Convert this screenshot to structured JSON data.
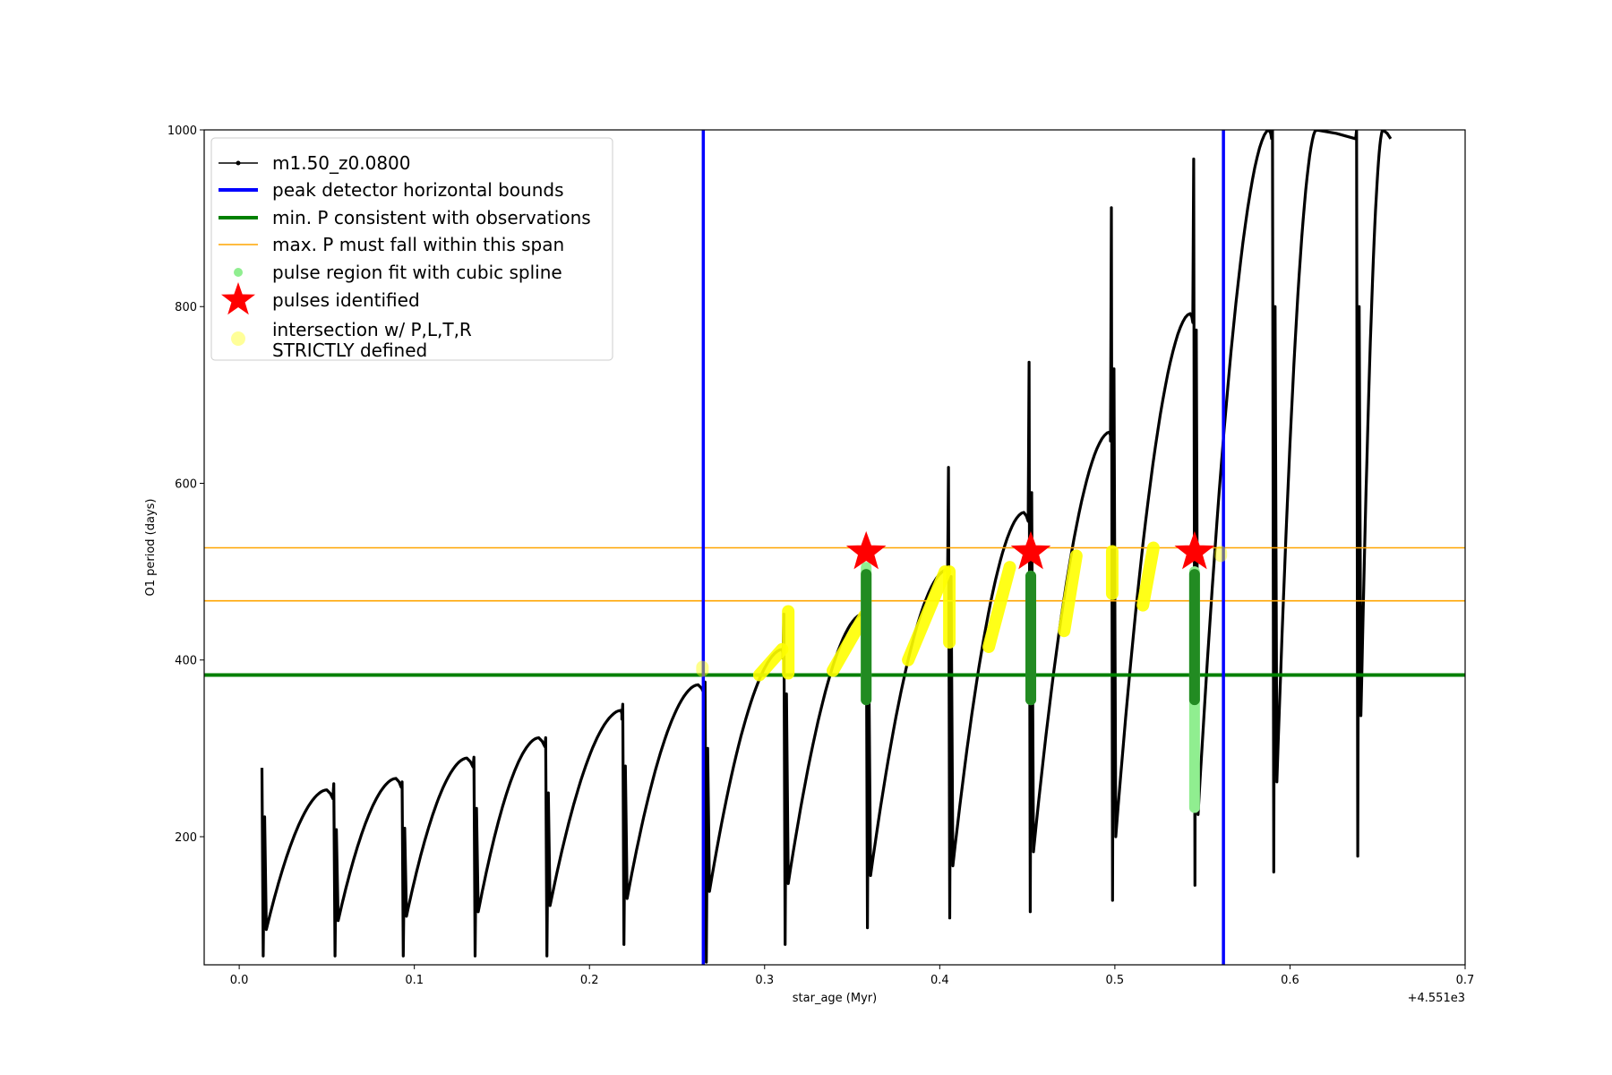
{
  "chart_data": {
    "type": "line",
    "title": "",
    "xlabel": "star_age (Myr)",
    "ylabel": "O1 period (days)",
    "x_offset_label": "+4.551e3",
    "xlim": [
      -0.02,
      0.7
    ],
    "ylim": [
      55,
      1000
    ],
    "xticks": [
      {
        "value": 0.0,
        "label": "0.0"
      },
      {
        "value": 0.1,
        "label": "0.1"
      },
      {
        "value": 0.2,
        "label": "0.2"
      },
      {
        "value": 0.3,
        "label": "0.3"
      },
      {
        "value": 0.4,
        "label": "0.4"
      },
      {
        "value": 0.5,
        "label": "0.5"
      },
      {
        "value": 0.6,
        "label": "0.6"
      },
      {
        "value": 0.7,
        "label": "0.7"
      }
    ],
    "yticks": [
      {
        "value": 200,
        "label": "200"
      },
      {
        "value": 400,
        "label": "400"
      },
      {
        "value": 600,
        "label": "600"
      },
      {
        "value": 800,
        "label": "800"
      },
      {
        "value": 1000,
        "label": "1000"
      }
    ],
    "grid": false,
    "legend_position": "upper-left",
    "legend": [
      {
        "label": "m1.50_z0.0800",
        "kind": "line-marker",
        "color": "#000000"
      },
      {
        "label": "peak detector horizontal bounds",
        "kind": "thick-line",
        "color": "#0000ff"
      },
      {
        "label": "min. P consistent with observations",
        "kind": "thick-line",
        "color": "#008000"
      },
      {
        "label": "max. P must fall within this span",
        "kind": "thin-line",
        "color": "#ffa500"
      },
      {
        "label": "pulse region fit with cubic spline",
        "kind": "dot",
        "color": "#90ee90"
      },
      {
        "label": "pulses identified",
        "kind": "star",
        "color": "#ff0000"
      },
      {
        "label": "intersection w/ P,L,T,R\nSTRICTLY defined",
        "kind": "big-dot",
        "color": "#ffff99"
      }
    ],
    "vertical_lines": [
      {
        "name": "peak detector horizontal bounds",
        "x": 0.265,
        "color": "#0000ff"
      },
      {
        "name": "peak detector horizontal bounds",
        "x": 0.562,
        "color": "#0000ff"
      }
    ],
    "horizontal_lines": [
      {
        "name": "min. P consistent with observations",
        "y": 383,
        "color": "#008000"
      },
      {
        "name": "max. P must fall within this span",
        "y": 467,
        "color": "#ffa500"
      },
      {
        "name": "max. P must fall within this span",
        "y": 527,
        "color": "#ffa500"
      }
    ],
    "series": [
      {
        "name": "m1.50_z0.0800",
        "color": "#000000",
        "thermal_pulses": [
          {
            "start": 0.013,
            "spike_top": 278,
            "spike_bottom": 65,
            "trough": 95,
            "peak_x": 0.05,
            "peak": 253
          },
          {
            "start": 0.054,
            "spike_top": 260,
            "spike_bottom": 65,
            "trough": 105,
            "peak_x": 0.0895,
            "peak": 266
          },
          {
            "start": 0.093,
            "spike_top": 262,
            "spike_bottom": 65,
            "trough": 110,
            "peak_x": 0.13,
            "peak": 289
          },
          {
            "start": 0.134,
            "spike_top": 290,
            "spike_bottom": 65,
            "trough": 115,
            "peak_x": 0.171,
            "peak": 312
          },
          {
            "start": 0.175,
            "spike_top": 312,
            "spike_bottom": 65,
            "trough": 122,
            "peak_x": 0.218,
            "peak": 343
          },
          {
            "start": 0.219,
            "spike_top": 350,
            "spike_bottom": 78,
            "trough": 130,
            "peak_x": 0.262,
            "peak": 372
          },
          {
            "start": 0.266,
            "spike_top": 375,
            "spike_bottom": 58,
            "trough": 138,
            "peak_x": 0.31,
            "peak": 412
          },
          {
            "start": 0.311,
            "spike_top": 452,
            "spike_bottom": 78,
            "trough": 147,
            "peak_x": 0.356,
            "peak": 452
          },
          {
            "start": 0.358,
            "spike_top": 505,
            "spike_bottom": 97,
            "trough": 156,
            "peak_x": 0.404,
            "peak": 502
          },
          {
            "start": 0.405,
            "spike_top": 618,
            "spike_bottom": 108,
            "trough": 167,
            "peak_x": 0.448,
            "peak": 567
          },
          {
            "start": 0.451,
            "spike_top": 737,
            "spike_bottom": 115,
            "trough": 183,
            "peak_x": 0.497,
            "peak": 658
          },
          {
            "start": 0.498,
            "spike_top": 912,
            "spike_bottom": 128,
            "trough": 200,
            "peak_x": 0.543,
            "peak": 792
          },
          {
            "start": 0.545,
            "spike_top": 967,
            "spike_bottom": 145,
            "trough": 225,
            "peak_x": 0.588,
            "peak": 1000
          },
          {
            "start": 0.59,
            "spike_top": 1000,
            "spike_bottom": 160,
            "trough": 262,
            "peak_x": 0.615,
            "peak": 1000
          },
          {
            "start": 0.638,
            "spike_top": 1000,
            "spike_bottom": 178,
            "trough": 337,
            "peak_x": 0.653,
            "peak": 1000
          }
        ]
      },
      {
        "name": "pulse region fit with cubic spline",
        "color": "#90ee90",
        "segments": [
          {
            "x": 0.358,
            "y_from": 355,
            "y_to": 505
          },
          {
            "x": 0.452,
            "y_from": 355,
            "y_to": 495
          },
          {
            "x": 0.5455,
            "y_from": 233,
            "y_to": 500
          }
        ]
      },
      {
        "name": "pulses identified",
        "color": "#ff0000",
        "points": [
          {
            "x": 0.358,
            "y": 522
          },
          {
            "x": 0.452,
            "y": 522
          },
          {
            "x": 0.5455,
            "y": 522
          }
        ]
      },
      {
        "name": "intersection w/ P,L,T,R STRICTLY defined",
        "color": "#ffff00",
        "segments": [
          {
            "x0": 0.2645,
            "y0": 388,
            "x1": 0.2645,
            "y1": 392
          },
          {
            "x0": 0.297,
            "y0": 383,
            "x1": 0.31,
            "y1": 412
          },
          {
            "x0": 0.3135,
            "y0": 385,
            "x1": 0.3135,
            "y1": 455
          },
          {
            "x0": 0.339,
            "y0": 388,
            "x1": 0.357,
            "y1": 450
          },
          {
            "x0": 0.382,
            "y0": 400,
            "x1": 0.403,
            "y1": 500
          },
          {
            "x0": 0.4055,
            "y0": 420,
            "x1": 0.4055,
            "y1": 500
          },
          {
            "x0": 0.428,
            "y0": 415,
            "x1": 0.44,
            "y1": 505
          },
          {
            "x0": 0.471,
            "y0": 433,
            "x1": 0.478,
            "y1": 518
          },
          {
            "x0": 0.4985,
            "y0": 475,
            "x1": 0.4985,
            "y1": 523
          },
          {
            "x0": 0.516,
            "y0": 462,
            "x1": 0.522,
            "y1": 527
          },
          {
            "x0": 0.5605,
            "y0": 518,
            "x1": 0.5605,
            "y1": 522
          }
        ]
      }
    ]
  }
}
